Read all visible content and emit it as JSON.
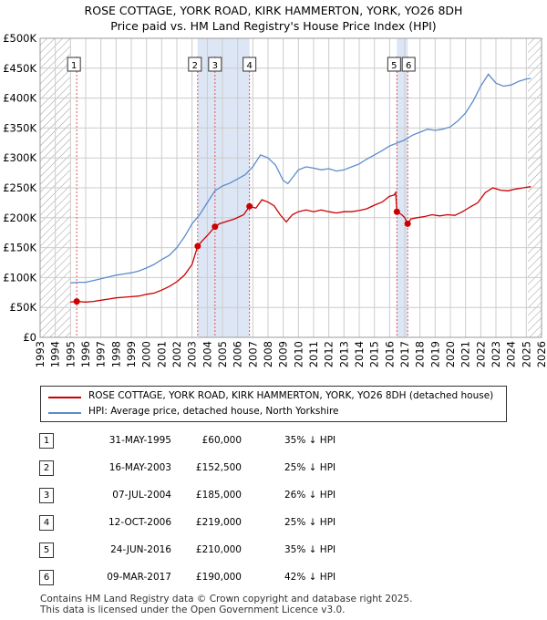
{
  "title_line1": "ROSE COTTAGE, YORK ROAD, KIRK HAMMERTON, YORK, YO26 8DH",
  "title_line2": "Price paid vs. HM Land Registry's House Price Index (HPI)",
  "colors": {
    "red": "#cc0000",
    "blue": "#5b8ccc",
    "shade": "#dde6f5",
    "hatch": "#999999",
    "grid": "#cccccc"
  },
  "chart_data": {
    "type": "line",
    "ylim": [
      0,
      500000
    ],
    "xlim": [
      1993,
      2026
    ],
    "y_ticks": [
      0,
      50000,
      100000,
      150000,
      200000,
      250000,
      300000,
      350000,
      400000,
      450000,
      500000
    ],
    "y_tick_labels": [
      "£0",
      "£50K",
      "£100K",
      "£150K",
      "£200K",
      "£250K",
      "£300K",
      "£350K",
      "£400K",
      "£450K",
      "£500K"
    ],
    "x_tick_labels": [
      "1993",
      "1994",
      "1995",
      "1996",
      "1997",
      "1998",
      "1999",
      "2000",
      "2001",
      "2002",
      "2003",
      "2004",
      "2005",
      "2006",
      "2007",
      "2008",
      "2009",
      "2010",
      "2011",
      "2012",
      "2013",
      "2014",
      "2015",
      "2016",
      "2017",
      "2018",
      "2019",
      "2020",
      "2021",
      "2022",
      "2023",
      "2024",
      "2025",
      "2026"
    ],
    "hatched_ranges": [
      [
        1993,
        1995.0
      ],
      [
        2025.1,
        2026
      ]
    ],
    "series": [
      {
        "name": "ROSE COTTAGE, YORK ROAD, KIRK HAMMERTON, YORK, YO26 8DH (detached house)",
        "color": "#cc0000",
        "points": [
          [
            1995.0,
            59000
          ],
          [
            1995.41,
            60000
          ],
          [
            1996.0,
            59000
          ],
          [
            1996.5,
            60000
          ],
          [
            1997.0,
            62000
          ],
          [
            1997.5,
            64000
          ],
          [
            1998.0,
            66000
          ],
          [
            1998.5,
            67000
          ],
          [
            1999.0,
            68000
          ],
          [
            1999.5,
            69000
          ],
          [
            2000.0,
            72000
          ],
          [
            2000.5,
            74000
          ],
          [
            2001.0,
            79000
          ],
          [
            2001.5,
            85000
          ],
          [
            2002.0,
            93000
          ],
          [
            2002.5,
            104000
          ],
          [
            2003.0,
            122000
          ],
          [
            2003.37,
            152500
          ],
          [
            2003.7,
            162000
          ],
          [
            2004.0,
            170000
          ],
          [
            2004.51,
            185000
          ],
          [
            2004.8,
            190000
          ],
          [
            2005.3,
            194000
          ],
          [
            2005.8,
            198000
          ],
          [
            2006.4,
            205000
          ],
          [
            2006.78,
            219000
          ],
          [
            2007.2,
            216000
          ],
          [
            2007.6,
            230000
          ],
          [
            2008.0,
            226000
          ],
          [
            2008.4,
            220000
          ],
          [
            2008.8,
            205000
          ],
          [
            2009.2,
            193000
          ],
          [
            2009.6,
            205000
          ],
          [
            2010.0,
            210000
          ],
          [
            2010.5,
            213000
          ],
          [
            2011.0,
            210000
          ],
          [
            2011.5,
            213000
          ],
          [
            2012.0,
            210000
          ],
          [
            2012.5,
            208000
          ],
          [
            2013.0,
            210000
          ],
          [
            2013.5,
            210000
          ],
          [
            2014.0,
            212000
          ],
          [
            2014.5,
            215000
          ],
          [
            2015.0,
            221000
          ],
          [
            2015.5,
            226000
          ],
          [
            2016.0,
            236000
          ],
          [
            2016.3,
            238000
          ],
          [
            2016.4,
            242000
          ],
          [
            2016.48,
            210000
          ],
          [
            2016.8,
            205000
          ],
          [
            2017.0,
            200000
          ],
          [
            2017.19,
            190000
          ],
          [
            2017.4,
            198000
          ],
          [
            2017.8,
            200000
          ],
          [
            2018.3,
            202000
          ],
          [
            2018.8,
            205000
          ],
          [
            2019.3,
            203000
          ],
          [
            2019.8,
            205000
          ],
          [
            2020.3,
            204000
          ],
          [
            2020.8,
            210000
          ],
          [
            2021.3,
            218000
          ],
          [
            2021.8,
            225000
          ],
          [
            2022.3,
            242000
          ],
          [
            2022.8,
            250000
          ],
          [
            2023.3,
            246000
          ],
          [
            2023.8,
            245000
          ],
          [
            2024.3,
            248000
          ],
          [
            2024.8,
            250000
          ],
          [
            2025.3,
            252000
          ]
        ]
      },
      {
        "name": "HPI: Average price, detached house, North Yorkshire",
        "color": "#5b8ccc",
        "points": [
          [
            1995.0,
            91000
          ],
          [
            1995.5,
            92000
          ],
          [
            1996.0,
            92000
          ],
          [
            1996.5,
            95000
          ],
          [
            1997.0,
            98000
          ],
          [
            1997.5,
            101000
          ],
          [
            1998.0,
            104000
          ],
          [
            1998.5,
            106000
          ],
          [
            1999.0,
            108000
          ],
          [
            1999.5,
            111000
          ],
          [
            2000.0,
            116000
          ],
          [
            2000.5,
            122000
          ],
          [
            2001.0,
            130000
          ],
          [
            2001.5,
            137000
          ],
          [
            2002.0,
            150000
          ],
          [
            2002.5,
            168000
          ],
          [
            2003.0,
            190000
          ],
          [
            2003.5,
            205000
          ],
          [
            2004.0,
            225000
          ],
          [
            2004.5,
            245000
          ],
          [
            2005.0,
            253000
          ],
          [
            2005.5,
            258000
          ],
          [
            2006.0,
            265000
          ],
          [
            2006.5,
            272000
          ],
          [
            2007.0,
            285000
          ],
          [
            2007.5,
            305000
          ],
          [
            2008.0,
            300000
          ],
          [
            2008.5,
            288000
          ],
          [
            2009.0,
            262000
          ],
          [
            2009.3,
            257000
          ],
          [
            2009.7,
            270000
          ],
          [
            2010.0,
            280000
          ],
          [
            2010.5,
            285000
          ],
          [
            2011.0,
            283000
          ],
          [
            2011.5,
            280000
          ],
          [
            2012.0,
            282000
          ],
          [
            2012.5,
            278000
          ],
          [
            2013.0,
            280000
          ],
          [
            2013.5,
            285000
          ],
          [
            2014.0,
            290000
          ],
          [
            2014.5,
            298000
          ],
          [
            2015.0,
            305000
          ],
          [
            2015.5,
            312000
          ],
          [
            2016.0,
            320000
          ],
          [
            2016.5,
            325000
          ],
          [
            2017.0,
            330000
          ],
          [
            2017.5,
            338000
          ],
          [
            2018.0,
            343000
          ],
          [
            2018.5,
            348000
          ],
          [
            2019.0,
            346000
          ],
          [
            2019.5,
            348000
          ],
          [
            2020.0,
            352000
          ],
          [
            2020.5,
            362000
          ],
          [
            2021.0,
            375000
          ],
          [
            2021.5,
            395000
          ],
          [
            2022.0,
            420000
          ],
          [
            2022.5,
            440000
          ],
          [
            2023.0,
            425000
          ],
          [
            2023.5,
            420000
          ],
          [
            2024.0,
            422000
          ],
          [
            2024.5,
            428000
          ],
          [
            2025.0,
            432000
          ],
          [
            2025.3,
            433000
          ]
        ]
      }
    ],
    "sales": [
      {
        "num": "1",
        "x": 1995.41,
        "y": 60000
      },
      {
        "num": "2",
        "x": 2003.37,
        "y": 152500
      },
      {
        "num": "3",
        "x": 2004.51,
        "y": 185000
      },
      {
        "num": "4",
        "x": 2006.78,
        "y": 219000
      },
      {
        "num": "5",
        "x": 2016.48,
        "y": 210000
      },
      {
        "num": "6",
        "x": 2017.19,
        "y": 190000
      }
    ]
  },
  "legend": {
    "red_label": "ROSE COTTAGE, YORK ROAD, KIRK HAMMERTON, YORK, YO26 8DH (detached house)",
    "blue_label": "HPI: Average price, detached house, North Yorkshire"
  },
  "transactions": [
    {
      "num": "1",
      "date": "31-MAY-1995",
      "price": "£60,000",
      "hpi": "35% ↓ HPI"
    },
    {
      "num": "2",
      "date": "16-MAY-2003",
      "price": "£152,500",
      "hpi": "25% ↓ HPI"
    },
    {
      "num": "3",
      "date": "07-JUL-2004",
      "price": "£185,000",
      "hpi": "26% ↓ HPI"
    },
    {
      "num": "4",
      "date": "12-OCT-2006",
      "price": "£219,000",
      "hpi": "25% ↓ HPI"
    },
    {
      "num": "5",
      "date": "24-JUN-2016",
      "price": "£210,000",
      "hpi": "35% ↓ HPI"
    },
    {
      "num": "6",
      "date": "09-MAR-2017",
      "price": "£190,000",
      "hpi": "42% ↓ HPI"
    }
  ],
  "footer_line1": "Contains HM Land Registry data © Crown copyright and database right 2025.",
  "footer_line2": "This data is licensed under the Open Government Licence v3.0."
}
